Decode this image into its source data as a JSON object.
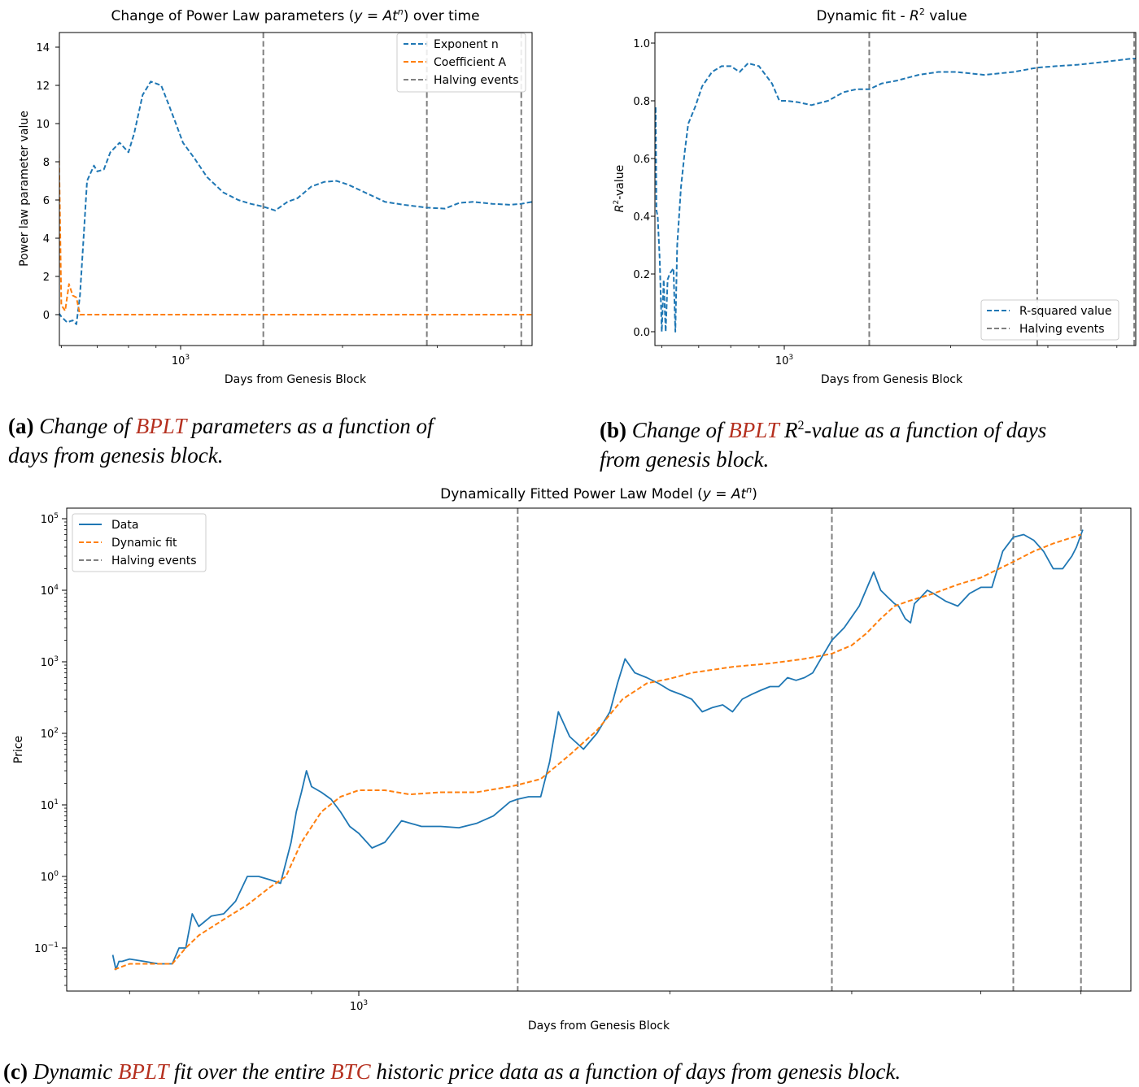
{
  "charts": {
    "a": {
      "title_prefix": "Change of Power Law parameters (",
      "title_math": "y = At",
      "title_sup": "n",
      "title_suffix": ") over time",
      "xlabel": "Days from Genesis Block",
      "ylabel": "Power law parameter value",
      "x_tick": "10",
      "x_tick_sup": "3",
      "y_ticks": [
        "0",
        "2",
        "4",
        "6",
        "8",
        "10",
        "12",
        "14"
      ],
      "legend": [
        "Exponent n",
        "Coefficient A",
        "Halving events"
      ]
    },
    "b": {
      "title_prefix": "Dynamic fit - ",
      "title_math": "R",
      "title_sup": "2",
      "title_suffix": " value",
      "xlabel": "Days from Genesis Block",
      "ylabel_math": "R",
      "ylabel_sup": "2",
      "ylabel_suffix": "-value",
      "x_tick": "10",
      "x_tick_sup": "3",
      "y_ticks": [
        "0.0",
        "0.2",
        "0.4",
        "0.6",
        "0.8",
        "1.0"
      ],
      "legend": [
        "R-squared value",
        "Halving events"
      ]
    },
    "c": {
      "title_prefix": "Dynamically Fitted Power Law Model (",
      "title_math": "y = At",
      "title_sup": "n",
      "title_suffix": ")",
      "xlabel": "Days from Genesis Block",
      "ylabel": "Price",
      "x_tick": "10",
      "x_tick_sup": "3",
      "y_ticks": [
        {
          "base": "10",
          "exp": "−1"
        },
        {
          "base": "10",
          "exp": "0"
        },
        {
          "base": "10",
          "exp": "1"
        },
        {
          "base": "10",
          "exp": "2"
        },
        {
          "base": "10",
          "exp": "3"
        },
        {
          "base": "10",
          "exp": "4"
        },
        {
          "base": "10",
          "exp": "5"
        }
      ],
      "legend": [
        "Data",
        "Dynamic fit",
        "Halving events"
      ]
    }
  },
  "captions": {
    "a": {
      "label": "(a)",
      "t1": "Change of",
      "hl": "BPLT",
      "t2": "parameters as a function of",
      "t3": "days from genesis block."
    },
    "b": {
      "label": "(b)",
      "t1": "Change of",
      "hl": "BPLT",
      "r": "R",
      "sup": "2",
      "t2": "-value as a function of days",
      "t3": "from genesis block."
    },
    "c": {
      "label": "(c)",
      "t1": "Dynamic",
      "hl": "BPLT",
      "t2": "fit over the entire",
      "hl2": "BTC",
      "t3": "historic price data as a function of days from genesis block."
    }
  },
  "colors": {
    "blue": "#1f77b4",
    "orange": "#ff7f0e",
    "gray": "#7f7f7f",
    "caption_highlight": "#b5301f"
  },
  "chart_data": [
    {
      "type": "line",
      "x_scale": "log",
      "xlim": [
        570,
        5200
      ],
      "ylim": [
        -1.5,
        15
      ],
      "halving_events": [
        1425,
        2870,
        4300,
        5000
      ],
      "series": [
        {
          "name": "Exponent n",
          "style": "dashed",
          "color": "#1f77b4",
          "x": [
            580,
            590,
            600,
            615,
            630,
            640,
            650,
            660,
            670,
            690,
            700,
            720,
            740,
            770,
            800,
            820,
            850,
            880,
            920,
            950,
            980,
            1010,
            1060,
            1120,
            1200,
            1280,
            1350,
            1425,
            1500,
            1580,
            1650,
            1750,
            1850,
            1950,
            2050,
            2200,
            2400,
            2600,
            2870,
            3100,
            3300,
            3500,
            3800,
            4100,
            4300,
            4500,
            4700,
            5000
          ],
          "y": [
            -0.8,
            0.2,
            -0.1,
            -0.4,
            -0.3,
            -0.5,
            1.0,
            4.0,
            7.0,
            7.8,
            7.5,
            7.6,
            8.5,
            9.0,
            8.5,
            9.5,
            11.5,
            12.2,
            12.0,
            11.0,
            10.0,
            9.0,
            8.2,
            7.2,
            6.4,
            6.0,
            5.8,
            5.65,
            5.45,
            5.9,
            6.1,
            6.7,
            6.95,
            7.0,
            6.8,
            6.4,
            5.9,
            5.75,
            5.6,
            5.55,
            5.85,
            5.9,
            5.8,
            5.75,
            5.8,
            5.9,
            5.8,
            5.7
          ]
        },
        {
          "name": "Coefficient A",
          "style": "dashed",
          "color": "#ff7f0e",
          "x": [
            580,
            588,
            590,
            600,
            610,
            620,
            630,
            640,
            650,
            660,
            700,
            1000,
            2000,
            5000
          ],
          "y": [
            0,
            0,
            14.1,
            0.5,
            0.2,
            1.6,
            1.0,
            0.9,
            0.0,
            0.0,
            0.0,
            0.0,
            0.0,
            0.0
          ]
        }
      ]
    },
    {
      "type": "line",
      "x_scale": "log",
      "xlim": [
        570,
        5200
      ],
      "ylim": [
        -0.05,
        1.05
      ],
      "halving_events": [
        1425,
        2870,
        4300,
        5000
      ],
      "series": [
        {
          "name": "R-squared value",
          "style": "dashed",
          "color": "#1f77b4",
          "x": [
            580,
            582,
            585,
            587,
            590,
            595,
            600,
            605,
            610,
            615,
            620,
            625,
            630,
            635,
            640,
            645,
            650,
            660,
            670,
            690,
            710,
            740,
            770,
            800,
            830,
            860,
            900,
            950,
            980,
            1010,
            1060,
            1120,
            1200,
            1280,
            1350,
            1425,
            1500,
            1600,
            1750,
            1900,
            2050,
            2300,
            2600,
            2870,
            3100,
            3400,
            3800,
            4200,
            4600,
            5000
          ],
          "y": [
            0.99,
            0.62,
            0.78,
            0.42,
            0.4,
            0.25,
            0.0,
            0.18,
            0.0,
            0.18,
            0.2,
            0.21,
            0.22,
            0.0,
            0.3,
            0.4,
            0.5,
            0.62,
            0.72,
            0.78,
            0.85,
            0.9,
            0.92,
            0.92,
            0.9,
            0.93,
            0.92,
            0.86,
            0.8,
            0.8,
            0.795,
            0.785,
            0.8,
            0.83,
            0.84,
            0.84,
            0.86,
            0.87,
            0.89,
            0.9,
            0.9,
            0.89,
            0.9,
            0.915,
            0.92,
            0.925,
            0.935,
            0.945,
            0.95,
            0.955
          ]
        }
      ]
    },
    {
      "type": "line",
      "x_scale": "log",
      "y_scale": "log",
      "xlim": [
        540,
        5600
      ],
      "ylim": [
        0.025,
        170000
      ],
      "halving_events": [
        1425,
        2870,
        4300,
        5000
      ],
      "series": [
        {
          "name": "Data",
          "style": "solid",
          "color": "#1f77b4",
          "x": [
            578,
            582,
            586,
            590,
            600,
            620,
            640,
            660,
            670,
            680,
            690,
            700,
            720,
            740,
            760,
            780,
            800,
            820,
            840,
            860,
            870,
            880,
            890,
            900,
            920,
            940,
            960,
            980,
            1000,
            1030,
            1060,
            1100,
            1150,
            1200,
            1250,
            1300,
            1350,
            1400,
            1425,
            1460,
            1500,
            1530,
            1560,
            1600,
            1650,
            1700,
            1750,
            1780,
            1810,
            1850,
            1900,
            1950,
            2000,
            2050,
            2100,
            2150,
            2200,
            2250,
            2300,
            2350,
            2400,
            2450,
            2500,
            2550,
            2600,
            2650,
            2700,
            2750,
            2800,
            2870,
            2950,
            3050,
            3150,
            3200,
            3250,
            3300,
            3330,
            3380,
            3420,
            3450,
            3500,
            3550,
            3600,
            3700,
            3800,
            3900,
            4000,
            4100,
            4200,
            4300,
            4400,
            4500,
            4600,
            4700,
            4800,
            4900,
            4950,
            5000,
            5020
          ],
          "y": [
            0.08,
            0.05,
            0.065,
            0.065,
            0.07,
            0.065,
            0.06,
            0.06,
            0.1,
            0.1,
            0.3,
            0.2,
            0.28,
            0.3,
            0.45,
            1.0,
            1.0,
            0.9,
            0.8,
            3,
            8,
            15,
            30,
            18,
            15,
            12,
            8,
            5,
            4,
            2.5,
            3,
            6,
            5,
            5,
            4.8,
            5.5,
            7,
            11,
            12,
            13,
            13,
            40,
            200,
            90,
            60,
            100,
            200,
            500,
            1100,
            700,
            600,
            500,
            400,
            350,
            300,
            200,
            230,
            250,
            200,
            300,
            350,
            400,
            450,
            450,
            600,
            550,
            600,
            700,
            1100,
            2000,
            3000,
            6000,
            18000,
            10000,
            8000,
            6500,
            6000,
            4000,
            3500,
            6500,
            8000,
            10000,
            9000,
            7000,
            6000,
            9000,
            11000,
            11000,
            35000,
            55000,
            60000,
            50000,
            35000,
            20000,
            20000,
            30000,
            40000,
            60000,
            70000
          ]
        },
        {
          "name": "Dynamic fit",
          "style": "dashed",
          "color": "#ff7f0e",
          "x": [
            580,
            600,
            640,
            660,
            680,
            700,
            740,
            780,
            820,
            850,
            880,
            920,
            960,
            1000,
            1060,
            1120,
            1200,
            1300,
            1400,
            1425,
            1500,
            1600,
            1700,
            1800,
            1900,
            2000,
            2100,
            2300,
            2500,
            2700,
            2870,
            3000,
            3100,
            3200,
            3300,
            3400,
            3600,
            3800,
            4000,
            4300,
            4500,
            4700,
            5000
          ],
          "y": [
            0.05,
            0.06,
            0.06,
            0.06,
            0.1,
            0.15,
            0.25,
            0.4,
            0.7,
            1.0,
            3,
            8,
            13,
            16,
            16,
            14,
            15,
            15,
            18,
            19,
            23,
            50,
            110,
            300,
            500,
            580,
            700,
            850,
            950,
            1100,
            1300,
            1700,
            2500,
            4000,
            6000,
            7000,
            9000,
            12000,
            15000,
            25000,
            35000,
            45000,
            60000
          ]
        }
      ]
    }
  ]
}
